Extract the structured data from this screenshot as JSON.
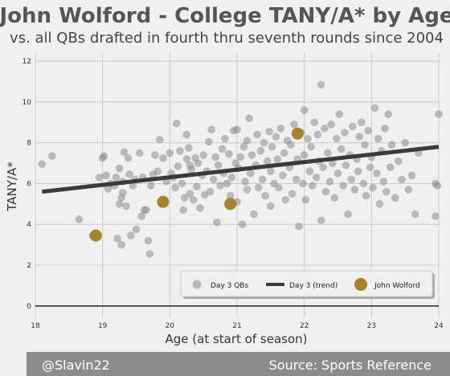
{
  "chart_data": {
    "type": "scatter",
    "title": "John Wolford - College TANY/A* by Age",
    "subtitle": "vs. all QBs drafted in fourth thru seventh rounds since 2004",
    "xlabel": "Age (at start of season)",
    "ylabel": "TANY/A*",
    "xlim": [
      18,
      24
    ],
    "ylim": [
      -0.6,
      12.4
    ],
    "xticks": [
      18,
      19,
      20,
      21,
      22,
      23,
      24
    ],
    "yticks": [
      0,
      2,
      4,
      6,
      8,
      10,
      12
    ],
    "grid": true,
    "legend_position": "bottom-right",
    "colors": {
      "background": "#f0f0f0",
      "grid": "#cbcbcb",
      "others": "#8c8c8c",
      "trend": "#3a3a3a",
      "highlight": "#a8822a",
      "footer": "#8c8c8c"
    },
    "series": [
      {
        "name": "Day 3 QBs",
        "points": [
          [
            18.1,
            6.95
          ],
          [
            18.25,
            7.35
          ],
          [
            18.65,
            4.25
          ],
          [
            18.85,
            3.45
          ],
          [
            18.95,
            6.3
          ],
          [
            19.0,
            7.25
          ],
          [
            19.02,
            7.35
          ],
          [
            19.05,
            6.4
          ],
          [
            19.08,
            5.75
          ],
          [
            19.12,
            6.0
          ],
          [
            19.18,
            5.9
          ],
          [
            19.2,
            6.3
          ],
          [
            19.22,
            3.3
          ],
          [
            19.25,
            5.0
          ],
          [
            19.25,
            6.75
          ],
          [
            19.28,
            3.0
          ],
          [
            19.28,
            5.3
          ],
          [
            19.3,
            5.55
          ],
          [
            19.3,
            6.1
          ],
          [
            19.32,
            7.55
          ],
          [
            19.35,
            4.9
          ],
          [
            19.38,
            7.25
          ],
          [
            19.4,
            6.45
          ],
          [
            19.42,
            3.45
          ],
          [
            19.45,
            5.9
          ],
          [
            19.48,
            6.2
          ],
          [
            19.5,
            3.75
          ],
          [
            19.55,
            7.5
          ],
          [
            19.58,
            4.4
          ],
          [
            19.6,
            6.3
          ],
          [
            19.62,
            4.7
          ],
          [
            19.65,
            4.7
          ],
          [
            19.68,
            3.2
          ],
          [
            19.7,
            2.55
          ],
          [
            19.72,
            5.9
          ],
          [
            19.75,
            6.45
          ],
          [
            19.78,
            7.4
          ],
          [
            19.82,
            6.6
          ],
          [
            19.85,
            8.15
          ],
          [
            19.9,
            7.25
          ],
          [
            19.95,
            6.1
          ],
          [
            20.0,
            7.5
          ],
          [
            20.02,
            6.5
          ],
          [
            20.05,
            6.3
          ],
          [
            20.08,
            5.8
          ],
          [
            20.1,
            8.95
          ],
          [
            20.12,
            6.85
          ],
          [
            20.15,
            7.6
          ],
          [
            20.18,
            6.0
          ],
          [
            20.2,
            4.7
          ],
          [
            20.22,
            5.3
          ],
          [
            20.25,
            7.2
          ],
          [
            20.25,
            8.4
          ],
          [
            20.28,
            7.75
          ],
          [
            20.3,
            6.9
          ],
          [
            20.3,
            5.5
          ],
          [
            20.32,
            6.7
          ],
          [
            20.35,
            5.2
          ],
          [
            20.38,
            7.25
          ],
          [
            20.4,
            5.85
          ],
          [
            20.42,
            7.0
          ],
          [
            20.45,
            4.8
          ],
          [
            20.48,
            6.4
          ],
          [
            20.5,
            7.4
          ],
          [
            20.52,
            5.45
          ],
          [
            20.55,
            6.6
          ],
          [
            20.58,
            8.05
          ],
          [
            20.6,
            5.6
          ],
          [
            20.62,
            8.65
          ],
          [
            20.65,
            6.2
          ],
          [
            20.68,
            7.3
          ],
          [
            20.7,
            4.1
          ],
          [
            20.72,
            6.9
          ],
          [
            20.75,
            5.9
          ],
          [
            20.78,
            7.7
          ],
          [
            20.8,
            6.5
          ],
          [
            20.82,
            8.2
          ],
          [
            20.85,
            6.0
          ],
          [
            20.88,
            7.45
          ],
          [
            20.9,
            5.4
          ],
          [
            20.92,
            6.3
          ],
          [
            20.95,
            8.6
          ],
          [
            20.98,
            7.0
          ],
          [
            21.0,
            8.65
          ],
          [
            21.0,
            5.1
          ],
          [
            21.02,
            6.75
          ],
          [
            21.05,
            7.3
          ],
          [
            21.08,
            4.0
          ],
          [
            21.1,
            7.8
          ],
          [
            21.12,
            6.1
          ],
          [
            21.15,
            8.1
          ],
          [
            21.15,
            5.7
          ],
          [
            21.18,
            9.2
          ],
          [
            21.2,
            6.5
          ],
          [
            21.22,
            7.4
          ],
          [
            21.25,
            4.5
          ],
          [
            21.28,
            6.9
          ],
          [
            21.3,
            8.4
          ],
          [
            21.32,
            5.8
          ],
          [
            21.35,
            7.6
          ],
          [
            21.38,
            6.2
          ],
          [
            21.4,
            8.0
          ],
          [
            21.42,
            5.4
          ],
          [
            21.45,
            7.1
          ],
          [
            21.48,
            8.55
          ],
          [
            21.5,
            6.6
          ],
          [
            21.5,
            4.9
          ],
          [
            21.52,
            7.8
          ],
          [
            21.55,
            6.0
          ],
          [
            21.58,
            8.3
          ],
          [
            21.6,
            7.2
          ],
          [
            21.62,
            5.8
          ],
          [
            21.65,
            8.7
          ],
          [
            21.68,
            6.4
          ],
          [
            21.7,
            7.5
          ],
          [
            21.72,
            5.2
          ],
          [
            21.75,
            8.1
          ],
          [
            21.78,
            6.8
          ],
          [
            21.8,
            7.9
          ],
          [
            21.82,
            5.5
          ],
          [
            21.85,
            8.9
          ],
          [
            21.88,
            6.2
          ],
          [
            21.9,
            7.2
          ],
          [
            21.92,
            3.9
          ],
          [
            21.95,
            8.5
          ],
          [
            21.98,
            6.0
          ],
          [
            22.0,
            9.6
          ],
          [
            22.0,
            7.4
          ],
          [
            22.02,
            5.2
          ],
          [
            22.05,
            8.2
          ],
          [
            22.08,
            6.6
          ],
          [
            22.1,
            7.8
          ],
          [
            22.12,
            5.9
          ],
          [
            22.15,
            9.0
          ],
          [
            22.18,
            6.3
          ],
          [
            22.2,
            8.4
          ],
          [
            22.22,
            7.1
          ],
          [
            22.25,
            10.85
          ],
          [
            22.25,
            4.2
          ],
          [
            22.28,
            6.8
          ],
          [
            22.3,
            8.7
          ],
          [
            22.32,
            5.6
          ],
          [
            22.35,
            7.5
          ],
          [
            22.38,
            6.1
          ],
          [
            22.4,
            8.9
          ],
          [
            22.42,
            7.0
          ],
          [
            22.45,
            5.3
          ],
          [
            22.48,
            8.2
          ],
          [
            22.5,
            6.5
          ],
          [
            22.52,
            9.4
          ],
          [
            22.55,
            7.7
          ],
          [
            22.58,
            5.9
          ],
          [
            22.6,
            8.5
          ],
          [
            22.62,
            6.9
          ],
          [
            22.65,
            4.5
          ],
          [
            22.68,
            7.4
          ],
          [
            22.7,
            6.2
          ],
          [
            22.72,
            8.8
          ],
          [
            22.75,
            5.7
          ],
          [
            22.78,
            7.2
          ],
          [
            22.8,
            6.6
          ],
          [
            22.82,
            8.3
          ],
          [
            22.85,
            9.0
          ],
          [
            22.88,
            6.0
          ],
          [
            22.9,
            7.9
          ],
          [
            22.92,
            5.4
          ],
          [
            22.95,
            8.6
          ],
          [
            22.98,
            6.8
          ],
          [
            23.0,
            7.3
          ],
          [
            23.02,
            5.8
          ],
          [
            23.05,
            9.7
          ],
          [
            23.08,
            6.5
          ],
          [
            23.1,
            8.2
          ],
          [
            23.12,
            5.0
          ],
          [
            23.15,
            7.6
          ],
          [
            23.18,
            6.1
          ],
          [
            23.2,
            8.7
          ],
          [
            23.22,
            5.6
          ],
          [
            23.25,
            9.4
          ],
          [
            23.28,
            6.8
          ],
          [
            23.3,
            7.9
          ],
          [
            23.35,
            5.3
          ],
          [
            23.4,
            7.1
          ],
          [
            23.45,
            6.2
          ],
          [
            23.5,
            8.0
          ],
          [
            23.55,
            5.7
          ],
          [
            23.6,
            6.4
          ],
          [
            23.65,
            4.5
          ],
          [
            23.7,
            7.5
          ],
          [
            23.95,
            4.4
          ],
          [
            23.95,
            6.0
          ],
          [
            23.98,
            5.9
          ],
          [
            24.0,
            9.4
          ]
        ]
      },
      {
        "name": "Day 3 (trend)",
        "line": [
          [
            18.1,
            5.6
          ],
          [
            24.0,
            7.8
          ]
        ]
      },
      {
        "name": "John Wolford",
        "points": [
          [
            18.9,
            3.45
          ],
          [
            19.9,
            5.1
          ],
          [
            20.9,
            5.0
          ],
          [
            21.9,
            8.45
          ]
        ]
      }
    ],
    "footer": {
      "left": "@Slavin22",
      "right": "Source: Sports Reference"
    }
  }
}
